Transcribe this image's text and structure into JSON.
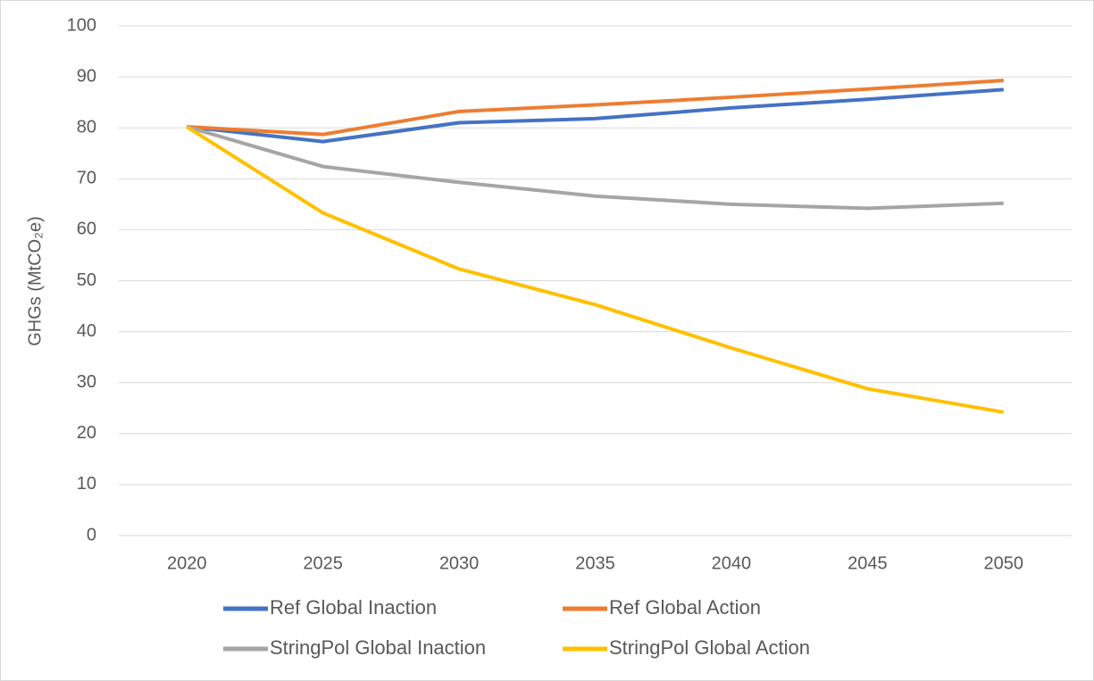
{
  "chart_data": {
    "type": "line",
    "y_label": "GHGs (MtCO₂e)",
    "categories": [
      "2020",
      "2025",
      "2030",
      "2035",
      "2040",
      "2045",
      "2050"
    ],
    "series": [
      {
        "name": "Ref Global Inaction",
        "color": "#4472c4",
        "values": [
          80.2,
          77.3,
          81.0,
          81.8,
          83.9,
          85.6,
          87.5
        ]
      },
      {
        "name": "Ref Global Action",
        "color": "#ed7d31",
        "values": [
          80.2,
          78.7,
          83.2,
          84.5,
          86.0,
          87.6,
          89.3
        ]
      },
      {
        "name": "StringPol Global Inaction",
        "color": "#a5a5a5",
        "values": [
          80.2,
          72.4,
          69.3,
          66.6,
          65.0,
          64.2,
          65.2
        ]
      },
      {
        "name": "StringPol Global Action",
        "color": "#ffc000",
        "values": [
          80.2,
          63.3,
          52.3,
          45.3,
          36.8,
          28.8,
          24.2
        ]
      }
    ],
    "ylim": [
      0,
      100
    ],
    "yticks": [
      0,
      10,
      20,
      30,
      40,
      50,
      60,
      70,
      80,
      90,
      100
    ],
    "grid": true,
    "legend": "bottom"
  }
}
